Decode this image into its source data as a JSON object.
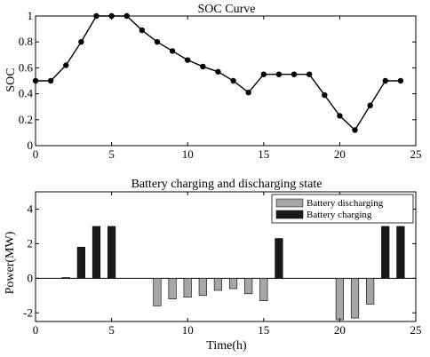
{
  "chart_data": [
    {
      "type": "line",
      "title": "SOC Curve",
      "xlabel": "",
      "ylabel": "SOC",
      "xlim": [
        0,
        25
      ],
      "ylim": [
        0,
        1
      ],
      "xticks": [
        "0",
        "5",
        "10",
        "15",
        "20",
        "25"
      ],
      "yticks": [
        "0",
        "0.2",
        "0.4",
        "0.6",
        "0.8",
        "1"
      ],
      "grid": false,
      "series": [
        {
          "x": [
            0,
            1,
            2,
            3,
            4,
            5,
            6,
            7,
            8,
            9,
            10,
            11,
            12,
            13,
            14,
            15,
            16,
            17,
            18,
            19,
            20,
            21,
            22,
            23,
            24
          ],
          "values": [
            0.5,
            0.5,
            0.62,
            0.8,
            1.0,
            1.0,
            1.0,
            0.89,
            0.8,
            0.73,
            0.66,
            0.61,
            0.57,
            0.5,
            0.41,
            0.55,
            0.55,
            0.55,
            0.55,
            0.39,
            0.23,
            0.12,
            0.31,
            0.5,
            0.5
          ],
          "color": "#000000"
        }
      ]
    },
    {
      "type": "bar",
      "title": "Battery charging and discharging state",
      "xlabel": "Time(h)",
      "ylabel": "Power(MW)",
      "xlim": [
        0,
        25
      ],
      "ylim": [
        -2.5,
        5
      ],
      "xticks": [
        "0",
        "5",
        "10",
        "15",
        "20",
        "25"
      ],
      "yticks": [
        "-2",
        "0",
        "2",
        "4"
      ],
      "grid": false,
      "legend_position": "top-right",
      "series": [
        {
          "name": "Battery discharging",
          "color": "#a6a6a6",
          "x": [
            2,
            8,
            9,
            10,
            11,
            12,
            13,
            14,
            15,
            20,
            21,
            22
          ],
          "values": [
            0.05,
            -1.6,
            -1.2,
            -1.1,
            -1.0,
            -0.7,
            -0.6,
            -0.9,
            -1.3,
            -2.4,
            -2.3,
            -1.5
          ]
        },
        {
          "name": "Battery charging",
          "color": "#1a1a1a",
          "x": [
            3,
            4,
            5,
            16,
            23,
            24
          ],
          "values": [
            1.8,
            3.0,
            3.0,
            2.3,
            3.0,
            3.0
          ]
        }
      ]
    }
  ]
}
